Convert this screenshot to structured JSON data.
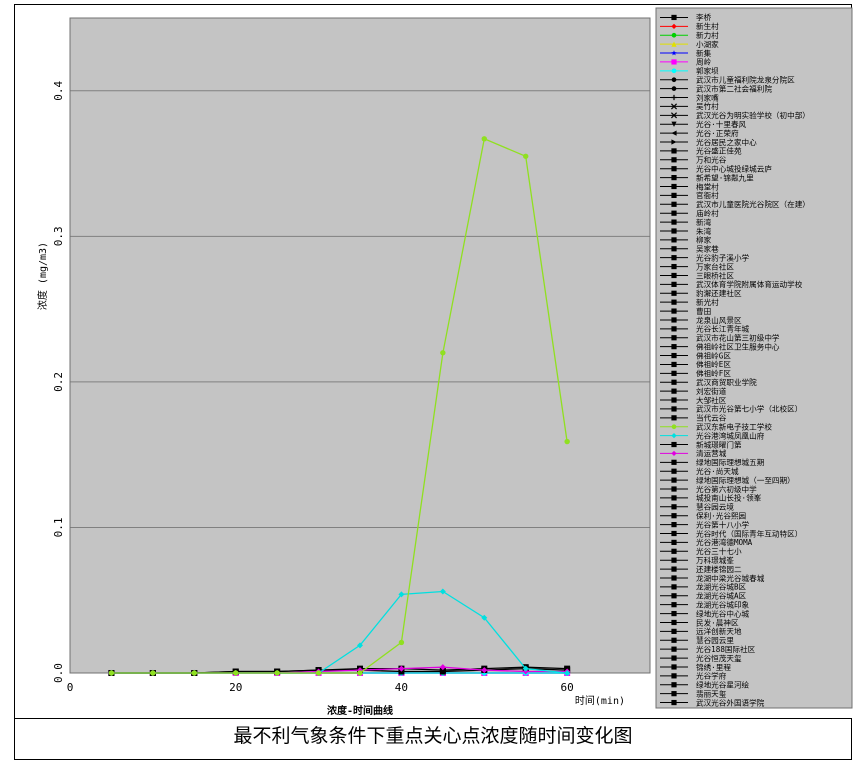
{
  "caption": "最不利气象条件下重点关心点浓度随时间变化图",
  "chart_data": {
    "type": "line",
    "title": "浓度-时间曲线",
    "xlabel": "时间(min)",
    "ylabel": "浓度 (mg/m3)",
    "xlim": [
      0,
      70
    ],
    "ylim": [
      0,
      0.45
    ],
    "x_ticks": [
      "0",
      "20",
      "40",
      "60"
    ],
    "y_ticks": [
      "0.0",
      "0.1",
      "0.2",
      "0.3",
      "0.4"
    ],
    "grid": "horizontal",
    "legend_position": "right",
    "x": [
      5,
      10,
      15,
      20,
      25,
      30,
      35,
      40,
      45,
      50,
      55,
      60
    ],
    "series": [
      {
        "name": "李桥",
        "color": "#000000",
        "marker": "square",
        "values": [
          0,
          0,
          0,
          0.001,
          0.001,
          0.002,
          0.002,
          0.001,
          0.001,
          0.002,
          0.003,
          0.002
        ]
      },
      {
        "name": "新生村",
        "color": "#ff0000",
        "marker": "diamond",
        "values": [
          0,
          0,
          0,
          0,
          0,
          0,
          0,
          0,
          0,
          0,
          0,
          0
        ]
      },
      {
        "name": "新力村",
        "color": "#00d000",
        "marker": "circle",
        "values": [
          0,
          0,
          0,
          0,
          0,
          0,
          0,
          0,
          0,
          0,
          0,
          0
        ]
      },
      {
        "name": "小湖家",
        "color": "#e0e000",
        "marker": "triangle",
        "values": [
          0,
          0,
          0,
          0,
          0,
          0,
          0,
          0,
          0,
          0,
          0,
          0
        ]
      },
      {
        "name": "新集",
        "color": "#0000ff",
        "marker": "star",
        "values": [
          0,
          0,
          0,
          0,
          0,
          0,
          0,
          0,
          0,
          0,
          0,
          0
        ]
      },
      {
        "name": "周岭",
        "color": "#ff00ff",
        "marker": "square",
        "values": [
          0,
          0,
          0,
          0,
          0,
          0,
          0,
          0,
          0,
          0,
          0,
          0
        ]
      },
      {
        "name": "郭家坝",
        "color": "#00ffff",
        "marker": "circle",
        "values": [
          0,
          0,
          0,
          0,
          0,
          0,
          0,
          0,
          0,
          0,
          0,
          0
        ]
      },
      {
        "name": "武汉东新电子技工学校",
        "color": "#90e020",
        "marker": "circle",
        "values": [
          0,
          0,
          0,
          0,
          0,
          0,
          0,
          0.021,
          0.22,
          0.367,
          0.355,
          0.159
        ]
      },
      {
        "name": "光谷港湾城凤凰山府",
        "color": "#00e0e0",
        "marker": "diamond",
        "values": [
          0,
          0,
          0,
          0,
          0,
          0,
          0.019,
          0.054,
          0.056,
          0.038,
          0.003,
          0
        ]
      },
      {
        "name": "光谷·尚天城",
        "color": "#000000",
        "marker": "square",
        "values": [
          0,
          0,
          0,
          0.001,
          0.001,
          0.002,
          0.003,
          0.003,
          0.002,
          0.003,
          0.004,
          0.003
        ]
      },
      {
        "name": "绿地国际理想城（一至四期）",
        "color": "#e000e0",
        "marker": "diamond",
        "values": [
          0,
          0,
          0,
          0,
          0,
          0.001,
          0.002,
          0.003,
          0.004,
          0.002,
          0.001,
          0.001
        ]
      }
    ],
    "legend": [
      {
        "label": "李桥",
        "color": "#000000",
        "marker": "square"
      },
      {
        "label": "新生村",
        "color": "#ff0000",
        "marker": "diamond"
      },
      {
        "label": "新力村",
        "color": "#00d000",
        "marker": "circle"
      },
      {
        "label": "小湖家",
        "color": "#e0e000",
        "marker": "triangle"
      },
      {
        "label": "新集",
        "color": "#0000ff",
        "marker": "star"
      },
      {
        "label": "周岭",
        "color": "#ff00ff",
        "marker": "square"
      },
      {
        "label": "郭家坝",
        "color": "#00ffff",
        "marker": "circle"
      },
      {
        "label": "武汉市儿童福利院龙泉分院区",
        "color": "#000000",
        "marker": "circle"
      },
      {
        "label": "武汉市第二社会福利院",
        "color": "#000000",
        "marker": "circle"
      },
      {
        "label": "刘家嘴",
        "color": "#000000",
        "marker": "plus"
      },
      {
        "label": "吴竹村",
        "color": "#000000",
        "marker": "x"
      },
      {
        "label": "武汉光谷为明实验学校（初中部）",
        "color": "#000000",
        "marker": "x"
      },
      {
        "label": "光谷·十里春风",
        "color": "#000000",
        "marker": "triangle-down"
      },
      {
        "label": "光谷·正荣府",
        "color": "#000000",
        "marker": "triangle-left"
      },
      {
        "label": "光谷居民之家中心",
        "color": "#000000",
        "marker": "triangle-right"
      },
      {
        "label": "光谷盛正佳苑",
        "color": "#000000",
        "marker": "square"
      },
      {
        "label": "万和光谷",
        "color": "#000000",
        "marker": "square"
      },
      {
        "label": "光谷中心城投绿城云庐",
        "color": "#000000",
        "marker": "square"
      },
      {
        "label": "新希望·锦粼九里",
        "color": "#000000",
        "marker": "square"
      },
      {
        "label": "梅堂村",
        "color": "#000000",
        "marker": "square"
      },
      {
        "label": "官衙村",
        "color": "#000000",
        "marker": "square"
      },
      {
        "label": "武汉市儿童医院光谷院区（在建）",
        "color": "#000000",
        "marker": "square"
      },
      {
        "label": "庙岭村",
        "color": "#000000",
        "marker": "square"
      },
      {
        "label": "新湾",
        "color": "#000000",
        "marker": "square"
      },
      {
        "label": "朱湾",
        "color": "#000000",
        "marker": "square"
      },
      {
        "label": "柳家",
        "color": "#000000",
        "marker": "square"
      },
      {
        "label": "吴家巷",
        "color": "#000000",
        "marker": "square"
      },
      {
        "label": "光谷豹子溪小学",
        "color": "#000000",
        "marker": "square"
      },
      {
        "label": "万家台社区",
        "color": "#000000",
        "marker": "square"
      },
      {
        "label": "三眼桥社区",
        "color": "#000000",
        "marker": "square"
      },
      {
        "label": "武汉体育学院附属体育运动学校",
        "color": "#000000",
        "marker": "square"
      },
      {
        "label": "豹澥还建社区",
        "color": "#000000",
        "marker": "square"
      },
      {
        "label": "新光村",
        "color": "#000000",
        "marker": "square"
      },
      {
        "label": "曹田",
        "color": "#000000",
        "marker": "square"
      },
      {
        "label": "龙泉山风景区",
        "color": "#000000",
        "marker": "square"
      },
      {
        "label": "光谷长江青年城",
        "color": "#000000",
        "marker": "square"
      },
      {
        "label": "武汉市花山第三初级中学",
        "color": "#000000",
        "marker": "square"
      },
      {
        "label": "佛祖岭社区卫生服务中心",
        "color": "#000000",
        "marker": "square"
      },
      {
        "label": "佛祖岭G区",
        "color": "#000000",
        "marker": "square"
      },
      {
        "label": "佛祖岭E区",
        "color": "#000000",
        "marker": "square"
      },
      {
        "label": "佛祖岭F区",
        "color": "#000000",
        "marker": "square"
      },
      {
        "label": "武汉商贸职业学院",
        "color": "#000000",
        "marker": "square"
      },
      {
        "label": "刘宏街道",
        "color": "#000000",
        "marker": "square"
      },
      {
        "label": "大邹社区",
        "color": "#000000",
        "marker": "square"
      },
      {
        "label": "武汉市光谷第七小学（北校区）",
        "color": "#000000",
        "marker": "square"
      },
      {
        "label": "当代云谷",
        "color": "#000000",
        "marker": "square"
      },
      {
        "label": "武汉东新电子技工学校",
        "color": "#90e020",
        "marker": "circle"
      },
      {
        "label": "光谷港湾城凤凰山府",
        "color": "#00e0e0",
        "marker": "diamond"
      },
      {
        "label": "新城璟曜门第",
        "color": "#000000",
        "marker": "square"
      },
      {
        "label": "清运营城",
        "color": "#e000e0",
        "marker": "diamond"
      },
      {
        "label": "绿地国际理想城五期",
        "color": "#000000",
        "marker": "square"
      },
      {
        "label": "光谷·尚天城",
        "color": "#000000",
        "marker": "square"
      },
      {
        "label": "绿地国际理想城（一至四期）",
        "color": "#000000",
        "marker": "square"
      },
      {
        "label": "光谷第六初级中学",
        "color": "#000000",
        "marker": "square"
      },
      {
        "label": "城投南山长投·领峯",
        "color": "#000000",
        "marker": "square"
      },
      {
        "label": "慧谷园云境",
        "color": "#000000",
        "marker": "square"
      },
      {
        "label": "保利·光谷熙园",
        "color": "#000000",
        "marker": "square"
      },
      {
        "label": "光谷第十八小学",
        "color": "#000000",
        "marker": "square"
      },
      {
        "label": "光谷时代（国际青年互动特区）",
        "color": "#000000",
        "marker": "square"
      },
      {
        "label": "光谷港湾德MOMA",
        "color": "#000000",
        "marker": "square"
      },
      {
        "label": "光谷三十七小",
        "color": "#000000",
        "marker": "square"
      },
      {
        "label": "万科璟城峯",
        "color": "#000000",
        "marker": "square"
      },
      {
        "label": "还建楼锦园二",
        "color": "#000000",
        "marker": "square"
      },
      {
        "label": "龙湖中梁光谷城春城",
        "color": "#000000",
        "marker": "square"
      },
      {
        "label": "龙湖光谷城B区",
        "color": "#000000",
        "marker": "square"
      },
      {
        "label": "龙湖光谷城A区",
        "color": "#000000",
        "marker": "square"
      },
      {
        "label": "龙湖光谷城印象",
        "color": "#000000",
        "marker": "square"
      },
      {
        "label": "绿地光谷中心城",
        "color": "#000000",
        "marker": "square"
      },
      {
        "label": "民发·晨神区",
        "color": "#000000",
        "marker": "square"
      },
      {
        "label": "远洋创新天地",
        "color": "#000000",
        "marker": "square"
      },
      {
        "label": "慧谷园云里",
        "color": "#000000",
        "marker": "square"
      },
      {
        "label": "光谷188国际社区",
        "color": "#000000",
        "marker": "square"
      },
      {
        "label": "光谷恒茂天玺",
        "color": "#000000",
        "marker": "square"
      },
      {
        "label": "锦绣·里程",
        "color": "#000000",
        "marker": "square"
      },
      {
        "label": "光谷学府",
        "color": "#000000",
        "marker": "square"
      },
      {
        "label": "绿地光谷星河绘",
        "color": "#000000",
        "marker": "square"
      },
      {
        "label": "翡丽天玺",
        "color": "#000000",
        "marker": "square"
      },
      {
        "label": "武汉光谷外国语学院",
        "color": "#000000",
        "marker": "square"
      }
    ]
  }
}
